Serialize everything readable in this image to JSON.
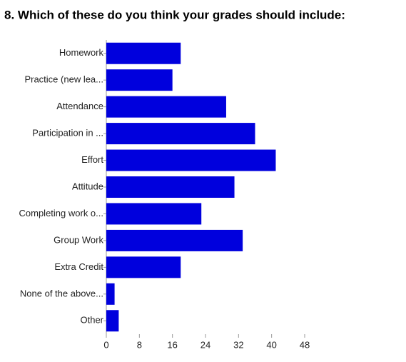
{
  "chart_data": {
    "type": "bar",
    "orientation": "horizontal",
    "title": "8. Which of these do you think your grades should include:",
    "categories": [
      "Homework",
      "Practice (new lea...",
      "Attendance",
      "Participation in ...",
      "Effort",
      "Attitude",
      "Completing work o...",
      "Group Work",
      "Extra Credit",
      "None of the above...",
      "Other"
    ],
    "values": [
      18,
      16,
      29,
      36,
      41,
      31,
      23,
      33,
      18,
      2,
      3
    ],
    "color": "#0000dd",
    "xlim": [
      0,
      48
    ],
    "xticks": [
      0,
      8,
      16,
      24,
      32,
      40,
      48
    ]
  }
}
